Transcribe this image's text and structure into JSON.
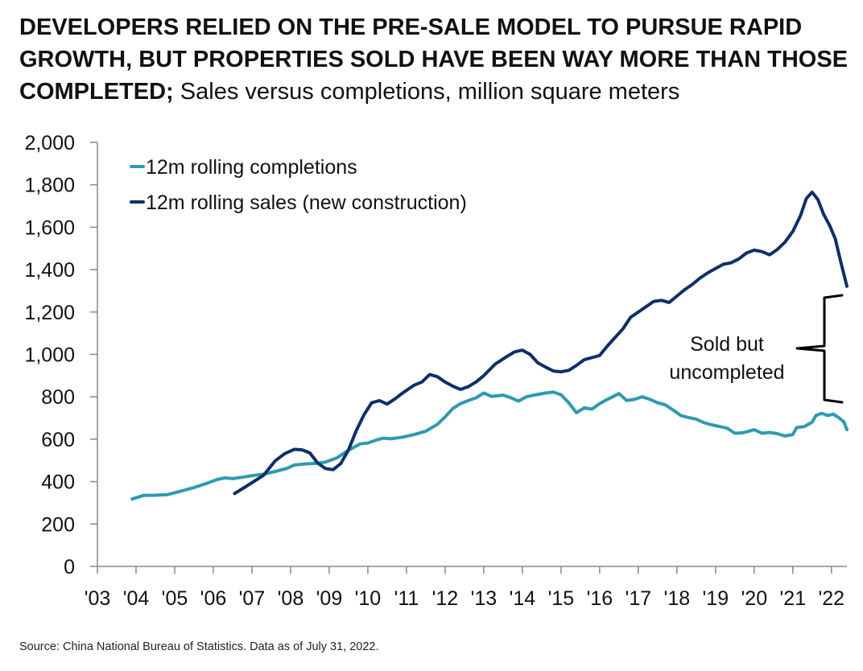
{
  "header": {
    "title_bold": "DEVELOPERS RELIED ON THE PRE-SALE MODEL TO PURSUE RAPID GROWTH, BUT PROPERTIES SOLD HAVE BEEN WAY MORE THAN THOSE COMPLETED;",
    "title_rest": " Sales versus completions, million square meters"
  },
  "footer": {
    "source": "Source: China National Bureau of Statistics. Data as of July 31, 2022."
  },
  "colors": {
    "completions": "#2E9AB2",
    "sales": "#0E2F6B",
    "axis": "#888888",
    "bracket": "#000000"
  },
  "chart_data": {
    "type": "line",
    "title": "",
    "xlabel": "",
    "ylabel": "",
    "ylim": [
      0,
      2000
    ],
    "xlim": [
      2003,
      2022.4
    ],
    "grid": false,
    "legend_position": "top-left",
    "y_ticks": [
      0,
      200,
      400,
      600,
      800,
      1000,
      1200,
      1400,
      1600,
      1800,
      2000
    ],
    "y_tick_labels": [
      "0",
      "200",
      "400",
      "600",
      "800",
      "1,000",
      "1,200",
      "1,400",
      "1,600",
      "1,800",
      "2,000"
    ],
    "x_tick_labels": [
      "'03",
      "'04",
      "'05",
      "'06",
      "'07",
      "'08",
      "'09",
      "'10",
      "'11",
      "'12",
      "'13",
      "'14",
      "'15",
      "'16",
      "'17",
      "'18",
      "'19",
      "'20",
      "'21",
      "'22"
    ],
    "series": [
      {
        "name": "12m rolling completions",
        "points": [
          [
            2003.9,
            318
          ],
          [
            2004.2,
            335
          ],
          [
            2004.5,
            336
          ],
          [
            2004.8,
            338
          ],
          [
            2005.1,
            352
          ],
          [
            2005.5,
            372
          ],
          [
            2005.8,
            390
          ],
          [
            2006.1,
            410
          ],
          [
            2006.3,
            418
          ],
          [
            2006.5,
            414
          ],
          [
            2006.8,
            422
          ],
          [
            2007.0,
            428
          ],
          [
            2007.3,
            435
          ],
          [
            2007.6,
            448
          ],
          [
            2007.9,
            462
          ],
          [
            2008.1,
            478
          ],
          [
            2008.4,
            484
          ],
          [
            2008.7,
            487
          ],
          [
            2008.9,
            492
          ],
          [
            2009.2,
            512
          ],
          [
            2009.5,
            548
          ],
          [
            2009.8,
            578
          ],
          [
            2010.0,
            582
          ],
          [
            2010.2,
            595
          ],
          [
            2010.4,
            605
          ],
          [
            2010.6,
            602
          ],
          [
            2010.9,
            610
          ],
          [
            2011.2,
            622
          ],
          [
            2011.5,
            638
          ],
          [
            2011.8,
            670
          ],
          [
            2012.0,
            705
          ],
          [
            2012.2,
            745
          ],
          [
            2012.4,
            768
          ],
          [
            2012.6,
            782
          ],
          [
            2012.8,
            795
          ],
          [
            2013.0,
            818
          ],
          [
            2013.2,
            802
          ],
          [
            2013.5,
            808
          ],
          [
            2013.7,
            796
          ],
          [
            2013.9,
            780
          ],
          [
            2014.1,
            800
          ],
          [
            2014.3,
            808
          ],
          [
            2014.6,
            818
          ],
          [
            2014.8,
            822
          ],
          [
            2015.0,
            810
          ],
          [
            2015.2,
            772
          ],
          [
            2015.4,
            725
          ],
          [
            2015.6,
            748
          ],
          [
            2015.8,
            742
          ],
          [
            2016.0,
            768
          ],
          [
            2016.2,
            788
          ],
          [
            2016.5,
            815
          ],
          [
            2016.7,
            782
          ],
          [
            2016.9,
            788
          ],
          [
            2017.1,
            800
          ],
          [
            2017.3,
            788
          ],
          [
            2017.5,
            772
          ],
          [
            2017.7,
            762
          ],
          [
            2017.9,
            738
          ],
          [
            2018.1,
            712
          ],
          [
            2018.3,
            702
          ],
          [
            2018.5,
            695
          ],
          [
            2018.7,
            678
          ],
          [
            2018.9,
            668
          ],
          [
            2019.1,
            660
          ],
          [
            2019.3,
            652
          ],
          [
            2019.5,
            628
          ],
          [
            2019.7,
            630
          ],
          [
            2019.9,
            640
          ],
          [
            2020.0,
            645
          ],
          [
            2020.2,
            628
          ],
          [
            2020.4,
            632
          ],
          [
            2020.6,
            626
          ],
          [
            2020.8,
            615
          ],
          [
            2021.0,
            622
          ],
          [
            2021.1,
            655
          ],
          [
            2021.3,
            660
          ],
          [
            2021.5,
            680
          ],
          [
            2021.6,
            712
          ],
          [
            2021.75,
            722
          ],
          [
            2021.9,
            712
          ],
          [
            2022.05,
            718
          ],
          [
            2022.2,
            700
          ],
          [
            2022.32,
            682
          ],
          [
            2022.4,
            645
          ]
        ]
      },
      {
        "name": "12m rolling sales (new construction)",
        "points": [
          [
            2006.55,
            344
          ],
          [
            2006.8,
            372
          ],
          [
            2007.0,
            395
          ],
          [
            2007.3,
            430
          ],
          [
            2007.6,
            498
          ],
          [
            2007.85,
            532
          ],
          [
            2008.1,
            552
          ],
          [
            2008.3,
            550
          ],
          [
            2008.5,
            535
          ],
          [
            2008.7,
            488
          ],
          [
            2008.9,
            462
          ],
          [
            2009.1,
            456
          ],
          [
            2009.3,
            485
          ],
          [
            2009.5,
            550
          ],
          [
            2009.7,
            640
          ],
          [
            2009.9,
            715
          ],
          [
            2010.1,
            772
          ],
          [
            2010.3,
            782
          ],
          [
            2010.5,
            766
          ],
          [
            2010.7,
            790
          ],
          [
            2010.9,
            818
          ],
          [
            2011.2,
            855
          ],
          [
            2011.4,
            870
          ],
          [
            2011.6,
            905
          ],
          [
            2011.8,
            895
          ],
          [
            2012.0,
            870
          ],
          [
            2012.2,
            850
          ],
          [
            2012.4,
            835
          ],
          [
            2012.6,
            848
          ],
          [
            2012.8,
            870
          ],
          [
            2013.0,
            900
          ],
          [
            2013.3,
            955
          ],
          [
            2013.6,
            990
          ],
          [
            2013.8,
            1012
          ],
          [
            2014.0,
            1020
          ],
          [
            2014.2,
            1000
          ],
          [
            2014.4,
            960
          ],
          [
            2014.6,
            940
          ],
          [
            2014.8,
            922
          ],
          [
            2015.0,
            918
          ],
          [
            2015.2,
            925
          ],
          [
            2015.4,
            948
          ],
          [
            2015.6,
            975
          ],
          [
            2015.8,
            985
          ],
          [
            2016.0,
            995
          ],
          [
            2016.2,
            1040
          ],
          [
            2016.4,
            1080
          ],
          [
            2016.6,
            1120
          ],
          [
            2016.8,
            1175
          ],
          [
            2017.0,
            1200
          ],
          [
            2017.2,
            1225
          ],
          [
            2017.4,
            1250
          ],
          [
            2017.6,
            1255
          ],
          [
            2017.8,
            1245
          ],
          [
            2018.0,
            1275
          ],
          [
            2018.2,
            1305
          ],
          [
            2018.4,
            1330
          ],
          [
            2018.6,
            1360
          ],
          [
            2018.8,
            1385
          ],
          [
            2019.0,
            1405
          ],
          [
            2019.2,
            1425
          ],
          [
            2019.4,
            1432
          ],
          [
            2019.6,
            1450
          ],
          [
            2019.8,
            1478
          ],
          [
            2020.0,
            1492
          ],
          [
            2020.2,
            1485
          ],
          [
            2020.4,
            1470
          ],
          [
            2020.6,
            1495
          ],
          [
            2020.8,
            1530
          ],
          [
            2021.0,
            1580
          ],
          [
            2021.2,
            1655
          ],
          [
            2021.35,
            1735
          ],
          [
            2021.5,
            1765
          ],
          [
            2021.65,
            1730
          ],
          [
            2021.8,
            1660
          ],
          [
            2021.95,
            1610
          ],
          [
            2022.1,
            1545
          ],
          [
            2022.25,
            1430
          ],
          [
            2022.4,
            1322
          ]
        ]
      }
    ],
    "annotations": [
      {
        "text_lines": [
          "Sold but",
          "uncompleted"
        ]
      }
    ]
  }
}
